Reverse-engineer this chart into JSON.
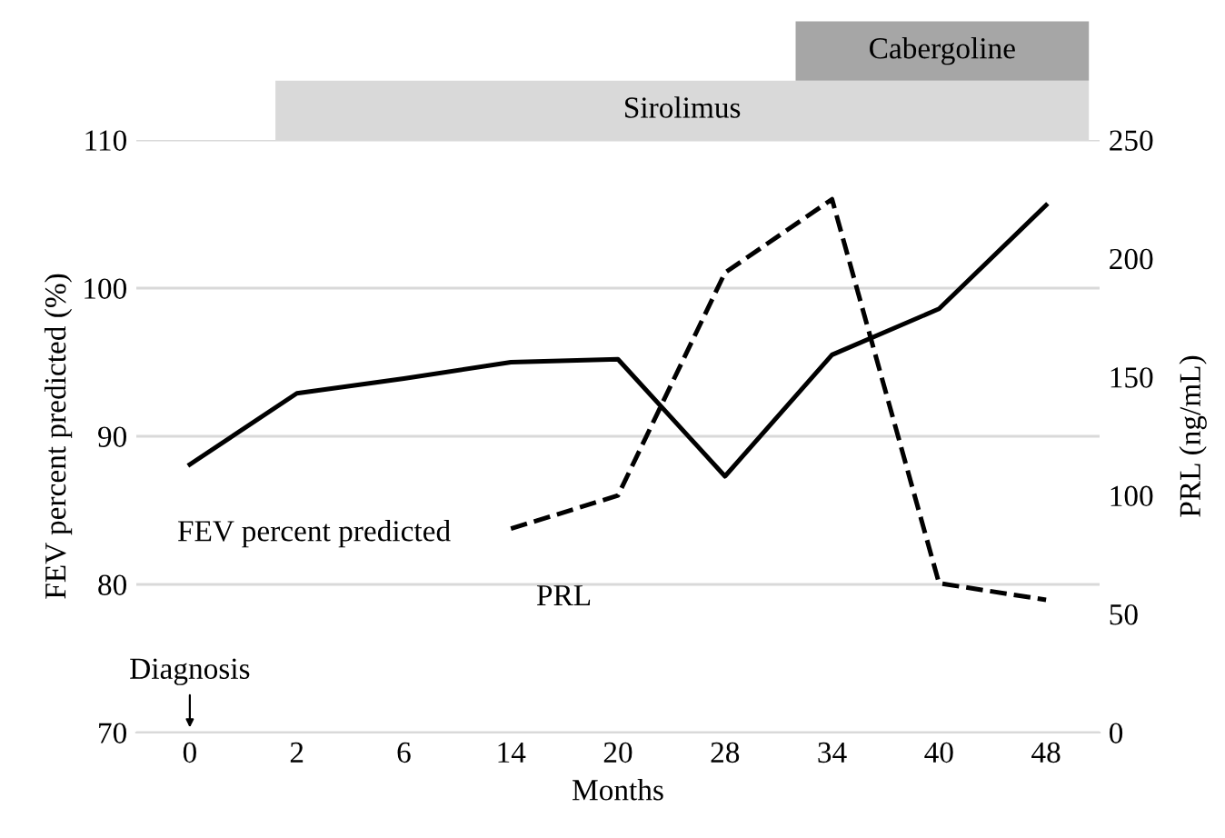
{
  "chart_data": {
    "type": "line",
    "xlabel": "Months",
    "ylabel": "FEV percent predicted (%)",
    "y2label": "PRL (ng/mL)",
    "categories": [
      "0",
      "2",
      "6",
      "14",
      "20",
      "28",
      "34",
      "40",
      "48"
    ],
    "series": [
      {
        "name": "FEV percent predicted",
        "color": "#000000",
        "line_style": "solid",
        "values": [
          88.1,
          92.9,
          93.9,
          95.0,
          95.2,
          87.3,
          95.5,
          98.6,
          105.6
        ]
      },
      {
        "name": "PRL",
        "color": "#000000",
        "line_style": "dashed",
        "axis": "y2",
        "values": [
          null,
          null,
          null,
          86,
          100,
          194,
          225,
          63,
          56
        ]
      }
    ],
    "ylim": [
      70,
      110
    ],
    "yticks": [
      70,
      80,
      90,
      100,
      110
    ],
    "y2lim": [
      0,
      250
    ],
    "y2ticks": [
      0,
      50,
      100,
      150,
      200,
      250
    ],
    "grid": "y",
    "marker": "none",
    "legend": false,
    "annotations": [
      "Diagnosis",
      "Sirolimus",
      "Cabergoline"
    ]
  }
}
